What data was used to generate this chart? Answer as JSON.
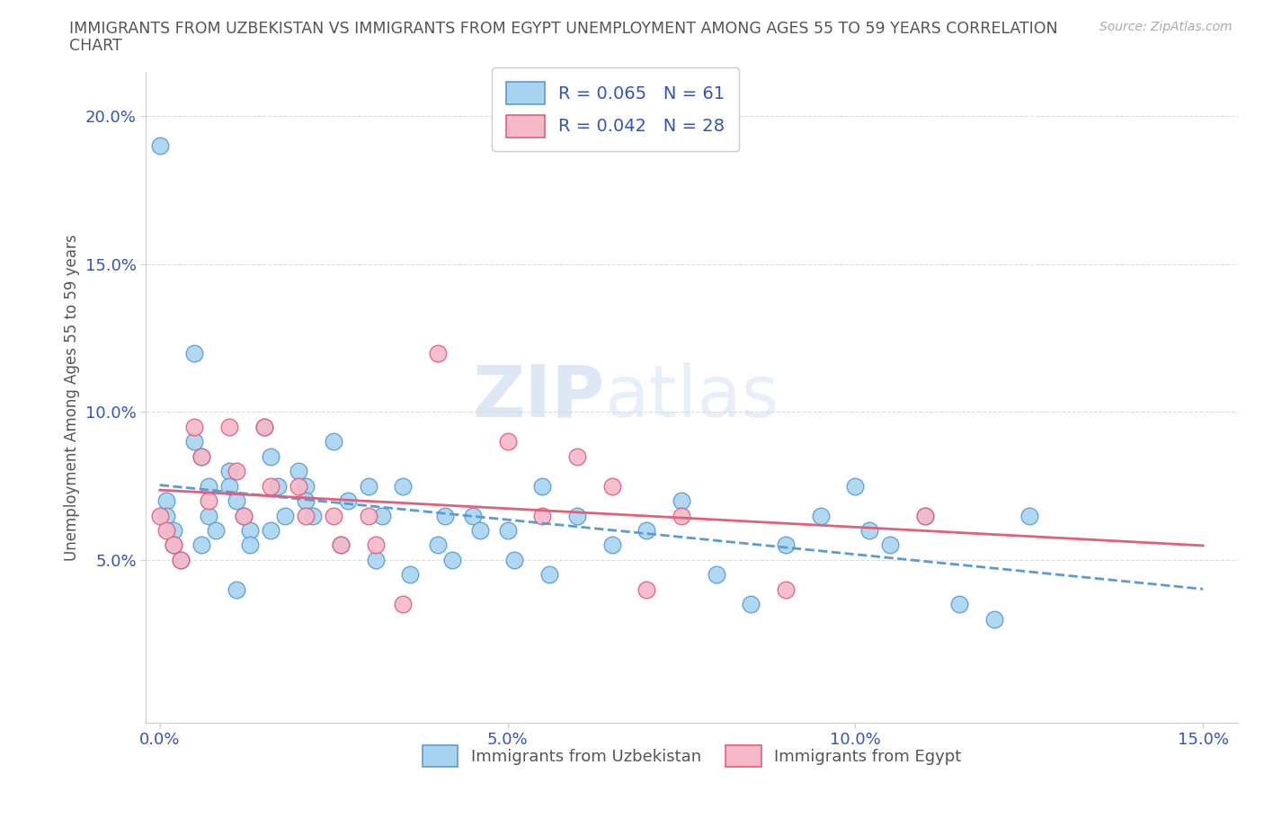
{
  "title_line1": "IMMIGRANTS FROM UZBEKISTAN VS IMMIGRANTS FROM EGYPT UNEMPLOYMENT AMONG AGES 55 TO 59 YEARS CORRELATION",
  "title_line2": "CHART",
  "source": "Source: ZipAtlas.com",
  "ylabel": "Unemployment Among Ages 55 to 59 years",
  "xlim": [
    -0.002,
    0.155
  ],
  "ylim": [
    -0.005,
    0.215
  ],
  "xticks": [
    0.0,
    0.05,
    0.1,
    0.15
  ],
  "xticklabels": [
    "0.0%",
    "5.0%",
    "10.0%",
    "15.0%"
  ],
  "yticks": [
    0.05,
    0.1,
    0.15,
    0.2
  ],
  "yticklabels": [
    "5.0%",
    "10.0%",
    "15.0%",
    "20.0%"
  ],
  "uzbekistan_fill": "#a8d4f0",
  "uzbekistan_edge": "#5b9bd5",
  "egypt_fill": "#f5b8c8",
  "egypt_edge": "#e0607a",
  "uzbekistan_R": 0.065,
  "uzbekistan_N": 61,
  "egypt_R": 0.042,
  "egypt_N": 28,
  "trend_uz_color": "#5b9bd5",
  "trend_eg_color": "#e0607a",
  "watermark_color": "#d0dff0",
  "legend_label_color": "#3355bb",
  "tick_color": "#3355bb",
  "uzbekistan_x": [
    0.0,
    0.001,
    0.001,
    0.002,
    0.002,
    0.003,
    0.005,
    0.005,
    0.006,
    0.007,
    0.007,
    0.008,
    0.01,
    0.01,
    0.011,
    0.012,
    0.013,
    0.013,
    0.015,
    0.016,
    0.017,
    0.018,
    0.02,
    0.021,
    0.022,
    0.025,
    0.027,
    0.03,
    0.032,
    0.035,
    0.04,
    0.042,
    0.045,
    0.05,
    0.055,
    0.06,
    0.065,
    0.07,
    0.075,
    0.08,
    0.085,
    0.09,
    0.095,
    0.1,
    0.102,
    0.105,
    0.11,
    0.115,
    0.12,
    0.125,
    0.006,
    0.011,
    0.016,
    0.021,
    0.026,
    0.031,
    0.036,
    0.041,
    0.046,
    0.051,
    0.056
  ],
  "uzbekistan_y": [
    0.19,
    0.07,
    0.065,
    0.06,
    0.055,
    0.05,
    0.12,
    0.09,
    0.085,
    0.075,
    0.065,
    0.06,
    0.08,
    0.075,
    0.07,
    0.065,
    0.06,
    0.055,
    0.095,
    0.085,
    0.075,
    0.065,
    0.08,
    0.075,
    0.065,
    0.09,
    0.07,
    0.075,
    0.065,
    0.075,
    0.055,
    0.05,
    0.065,
    0.06,
    0.075,
    0.065,
    0.055,
    0.06,
    0.07,
    0.045,
    0.035,
    0.055,
    0.065,
    0.075,
    0.06,
    0.055,
    0.065,
    0.035,
    0.03,
    0.065,
    0.055,
    0.04,
    0.06,
    0.07,
    0.055,
    0.05,
    0.045,
    0.065,
    0.06,
    0.05,
    0.045
  ],
  "egypt_x": [
    0.0,
    0.001,
    0.002,
    0.003,
    0.005,
    0.006,
    0.007,
    0.01,
    0.011,
    0.012,
    0.015,
    0.016,
    0.02,
    0.021,
    0.025,
    0.026,
    0.03,
    0.031,
    0.035,
    0.04,
    0.05,
    0.055,
    0.06,
    0.065,
    0.07,
    0.075,
    0.09,
    0.11
  ],
  "egypt_y": [
    0.065,
    0.06,
    0.055,
    0.05,
    0.095,
    0.085,
    0.07,
    0.095,
    0.08,
    0.065,
    0.095,
    0.075,
    0.075,
    0.065,
    0.065,
    0.055,
    0.065,
    0.055,
    0.035,
    0.12,
    0.09,
    0.065,
    0.085,
    0.075,
    0.04,
    0.065,
    0.04,
    0.065
  ]
}
